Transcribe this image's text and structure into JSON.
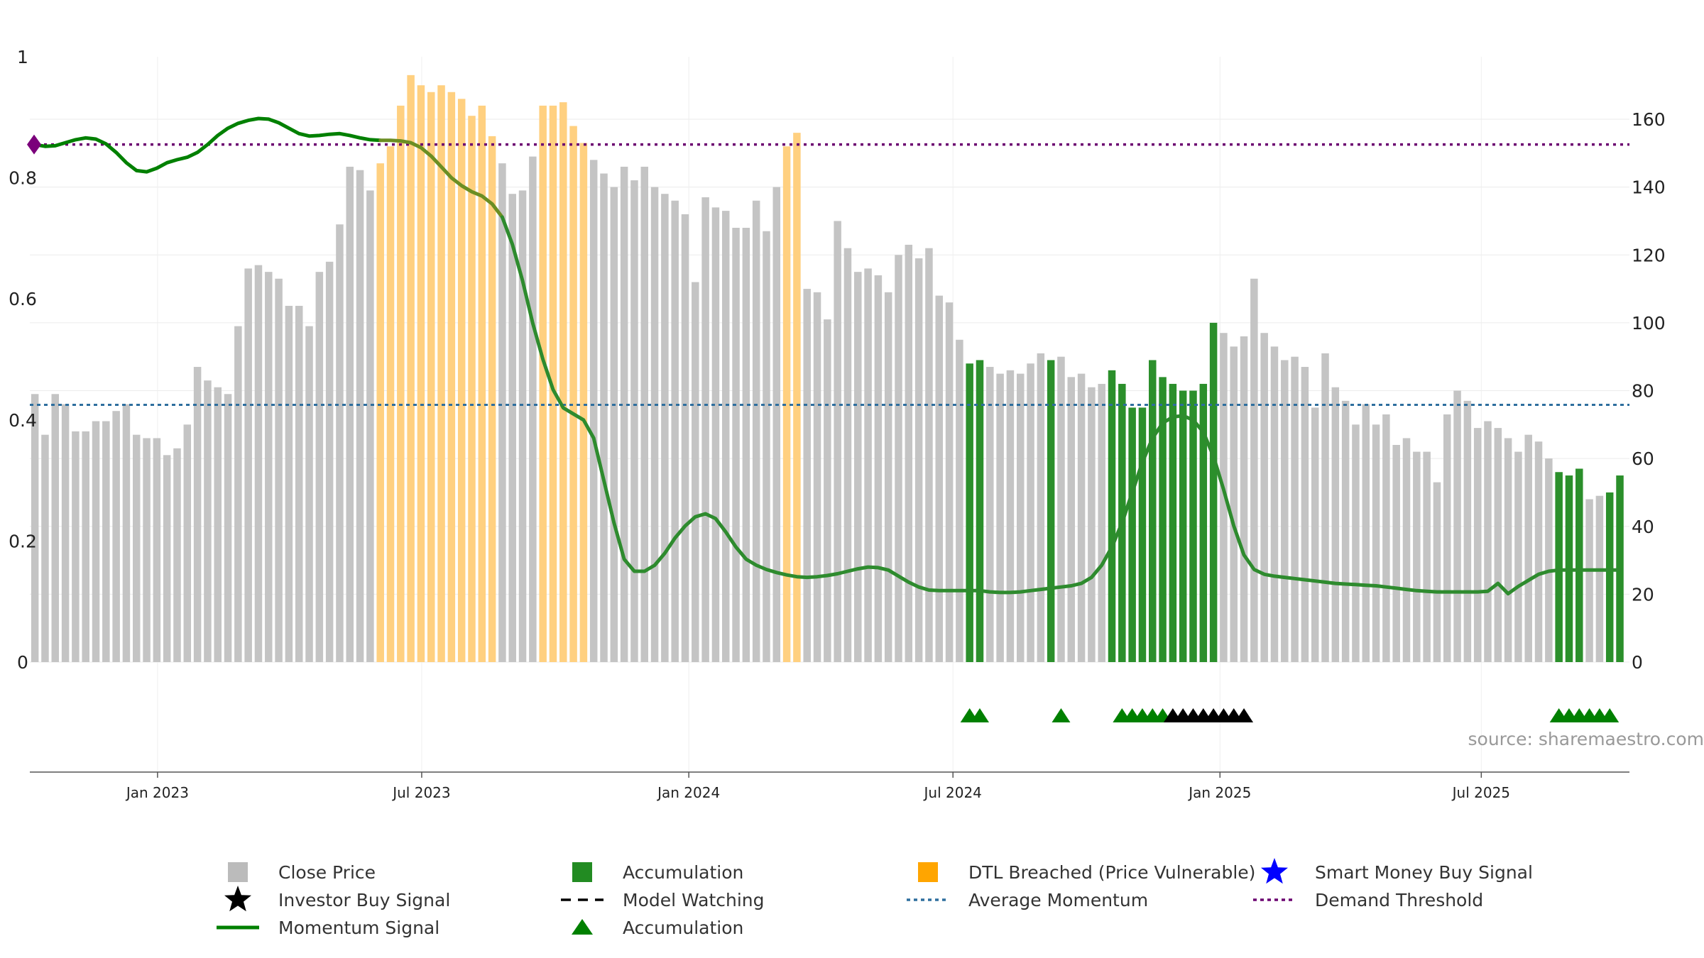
{
  "chart_data": {
    "type": "bar",
    "x_start": "2022-10-07",
    "x_step_days": 7,
    "close_price": [
      79,
      67,
      79,
      76,
      68,
      68,
      71,
      71,
      74,
      76,
      67,
      66,
      66,
      61,
      63,
      70,
      87,
      83,
      81,
      79,
      99,
      116,
      117,
      115,
      113,
      105,
      105,
      99,
      115,
      118,
      129,
      146,
      145,
      139,
      147,
      152,
      164,
      173,
      170,
      168,
      170,
      168,
      166,
      161,
      164,
      155,
      147,
      138,
      139,
      149,
      164,
      164,
      165,
      158,
      153,
      148,
      144,
      140,
      146,
      142,
      146,
      140,
      138,
      136,
      132,
      112,
      137,
      134,
      133,
      128,
      128,
      136,
      127,
      140,
      152,
      156,
      110,
      109,
      101,
      130,
      122,
      115,
      116,
      114,
      109,
      120,
      123,
      119,
      122,
      108,
      106,
      95,
      88,
      89,
      87,
      85,
      86,
      85,
      88,
      91,
      89,
      90,
      84,
      85,
      81,
      82,
      86,
      82,
      75,
      75,
      89,
      84,
      82,
      80,
      80,
      82,
      100,
      97,
      93,
      96,
      113,
      97,
      93,
      89,
      90,
      87,
      75,
      91,
      81,
      77,
      70,
      76,
      70,
      73,
      64,
      66,
      62,
      62,
      53,
      73,
      80,
      77,
      69,
      71,
      69,
      66,
      62,
      67,
      65,
      60,
      56,
      55,
      57,
      48,
      49,
      50,
      55
    ],
    "category": [
      0,
      0,
      0,
      0,
      0,
      0,
      0,
      0,
      0,
      0,
      0,
      0,
      0,
      0,
      0,
      0,
      0,
      0,
      0,
      0,
      0,
      0,
      0,
      0,
      0,
      0,
      0,
      0,
      0,
      0,
      0,
      0,
      0,
      0,
      2,
      2,
      2,
      2,
      2,
      2,
      2,
      2,
      2,
      2,
      2,
      2,
      0,
      0,
      0,
      0,
      2,
      2,
      2,
      2,
      2,
      0,
      0,
      0,
      0,
      0,
      0,
      0,
      0,
      0,
      0,
      0,
      0,
      0,
      0,
      0,
      0,
      0,
      0,
      0,
      2,
      2,
      0,
      0,
      0,
      0,
      0,
      0,
      0,
      0,
      0,
      0,
      0,
      0,
      0,
      0,
      0,
      0,
      1,
      1,
      0,
      0,
      0,
      0,
      0,
      0,
      1,
      0,
      0,
      0,
      0,
      0,
      1,
      1,
      1,
      1,
      1,
      1,
      1,
      1,
      1,
      1,
      1,
      0,
      0,
      0,
      0,
      0,
      0,
      0,
      0,
      0,
      0,
      0,
      0,
      0,
      0,
      0,
      0,
      0,
      0,
      0,
      0,
      0,
      0,
      0,
      0,
      0,
      0,
      0,
      0,
      0,
      0,
      0,
      0,
      0,
      1,
      1,
      1,
      0,
      0,
      1,
      1,
      1,
      0
    ],
    "momentum_signal": {
      "t": [
        0,
        1,
        2,
        3,
        4,
        5,
        6,
        7,
        8,
        9,
        10,
        11,
        12,
        13,
        14,
        15,
        16,
        17,
        18,
        19,
        20,
        21,
        22,
        23,
        24,
        25,
        26,
        27,
        28,
        29,
        30,
        31,
        32,
        33,
        34,
        35,
        36,
        37,
        38,
        39,
        40,
        41,
        42,
        43,
        44,
        45,
        46,
        47,
        48,
        49,
        50,
        51,
        52,
        53,
        54,
        55,
        56,
        57,
        58,
        59,
        60,
        61,
        62,
        63,
        64,
        65,
        66,
        67,
        68,
        69,
        70,
        71,
        72,
        73,
        74,
        75,
        76,
        77,
        78,
        79,
        80,
        81,
        82,
        83,
        84,
        85,
        86,
        87,
        88,
        89,
        90,
        91,
        92,
        93,
        94,
        95,
        96,
        97,
        98,
        99,
        100,
        101,
        102,
        103,
        104,
        105,
        106,
        107,
        108,
        109,
        110,
        111,
        112,
        113,
        114,
        115,
        116,
        117,
        118,
        119,
        120,
        121,
        122,
        123,
        124,
        125,
        126,
        127,
        128,
        129,
        130,
        131,
        132,
        133,
        134,
        135,
        136,
        137,
        138,
        139,
        140,
        141,
        142,
        143,
        144,
        145,
        146,
        147,
        148,
        149,
        150,
        151,
        152,
        153,
        154,
        155,
        156
      ],
      "values": [
        0.855,
        0.852,
        0.853,
        0.858,
        0.863,
        0.866,
        0.864,
        0.856,
        0.842,
        0.825,
        0.812,
        0.81,
        0.816,
        0.825,
        0.83,
        0.834,
        0.842,
        0.855,
        0.87,
        0.882,
        0.89,
        0.895,
        0.898,
        0.897,
        0.891,
        0.882,
        0.873,
        0.869,
        0.87,
        0.872,
        0.873,
        0.87,
        0.866,
        0.863,
        0.862,
        0.862,
        0.861,
        0.858,
        0.85,
        0.836,
        0.818,
        0.8,
        0.787,
        0.777,
        0.77,
        0.757,
        0.735,
        0.69,
        0.63,
        0.56,
        0.5,
        0.45,
        0.42,
        0.41,
        0.4,
        0.37,
        0.3,
        0.23,
        0.17,
        0.15,
        0.15,
        0.16,
        0.18,
        0.205,
        0.225,
        0.24,
        0.245,
        0.237,
        0.215,
        0.19,
        0.17,
        0.16,
        0.153,
        0.148,
        0.144,
        0.141,
        0.14,
        0.141,
        0.143,
        0.146,
        0.15,
        0.154,
        0.157,
        0.156,
        0.152,
        0.142,
        0.132,
        0.124,
        0.119,
        0.118,
        0.118,
        0.118,
        0.118,
        0.118,
        0.116,
        0.115,
        0.115,
        0.116,
        0.118,
        0.12,
        0.122,
        0.124,
        0.126,
        0.13,
        0.14,
        0.16,
        0.19,
        0.23,
        0.28,
        0.33,
        0.37,
        0.395,
        0.405,
        0.407,
        0.4,
        0.38,
        0.34,
        0.285,
        0.225,
        0.177,
        0.153,
        0.145,
        0.142,
        0.14,
        0.138,
        0.136,
        0.134,
        0.132,
        0.13,
        0.129,
        0.128,
        0.127,
        0.126,
        0.124,
        0.122,
        0.12,
        0.118,
        0.117,
        0.116,
        0.116,
        0.116,
        0.116,
        0.116,
        0.117,
        0.13,
        0.113,
        0.125,
        0.135,
        0.145,
        0.15,
        0.152,
        0.152,
        0.152,
        0.152,
        0.152,
        0.152,
        0.152
      ]
    },
    "momentum_segments": [
      {
        "from": 0,
        "to": 34,
        "color": "#008000"
      },
      {
        "from": 34,
        "to": 46,
        "color": "#6b8e23"
      },
      {
        "from": 46,
        "to": 157,
        "color": "#2e8b2e"
      }
    ],
    "average_momentum": 0.425,
    "demand_threshold": 0.855,
    "markers": {
      "accumulation": [
        92,
        93,
        101,
        107,
        108,
        109,
        110,
        111,
        150,
        151,
        152,
        153,
        154,
        155
      ],
      "investor_buy": [
        112,
        113,
        114,
        115,
        116,
        117,
        118,
        119
      ]
    },
    "y_left": {
      "min": 0,
      "max": 1,
      "ticks": [
        "0",
        "0.2",
        "0.4",
        "0.6",
        "0.8",
        "1"
      ]
    },
    "y_right": {
      "min": 0,
      "max": 180,
      "ticks": [
        "0",
        "20",
        "40",
        "60",
        "80",
        "100",
        "120",
        "140",
        "160"
      ]
    },
    "x_axis": {
      "tick_weeks": [
        12.57,
        38.57,
        64.86,
        90.86,
        117.14,
        142.86
      ],
      "tick_labels": [
        "Jan 2023",
        "Jul 2023",
        "Jan 2024",
        "Jul 2024",
        "Jan 2025",
        "Jul 2025"
      ]
    },
    "source": "source: sharemaestro.com",
    "legend": [
      {
        "label": "Close Price",
        "symbol": "square",
        "color": "#bbbbbb"
      },
      {
        "label": "Accumulation",
        "symbol": "square",
        "color": "#228b22"
      },
      {
        "label": "DTL Breached (Price Vulnerable)",
        "symbol": "square",
        "color": "#ffa500"
      },
      {
        "label": "Smart Money Buy Signal",
        "symbol": "star",
        "color": "#0000ff"
      },
      {
        "label": "Investor Buy Signal",
        "symbol": "star",
        "color": "#000000"
      },
      {
        "label": "Model Watching",
        "symbol": "dash",
        "color": "#000000"
      },
      {
        "label": "Average Momentum",
        "symbol": "dotted",
        "color": "#2e6e9e"
      },
      {
        "label": "Demand Threshold",
        "symbol": "dotted",
        "color": "#6b0070"
      },
      {
        "label": "Momentum Signal",
        "symbol": "line",
        "color": "#008000"
      },
      {
        "label": "Accumulation",
        "symbol": "triangle",
        "color": "#008000"
      }
    ],
    "colors": {
      "close_price": "#c4c4c4",
      "accumulation": "#2b8f2b",
      "dtl_breached": "#ffd080",
      "momentum_signal": "#008000",
      "average_momentum": "#2e6e9e",
      "demand_threshold": "#6b0070",
      "start_marker": "#7b007b"
    }
  }
}
